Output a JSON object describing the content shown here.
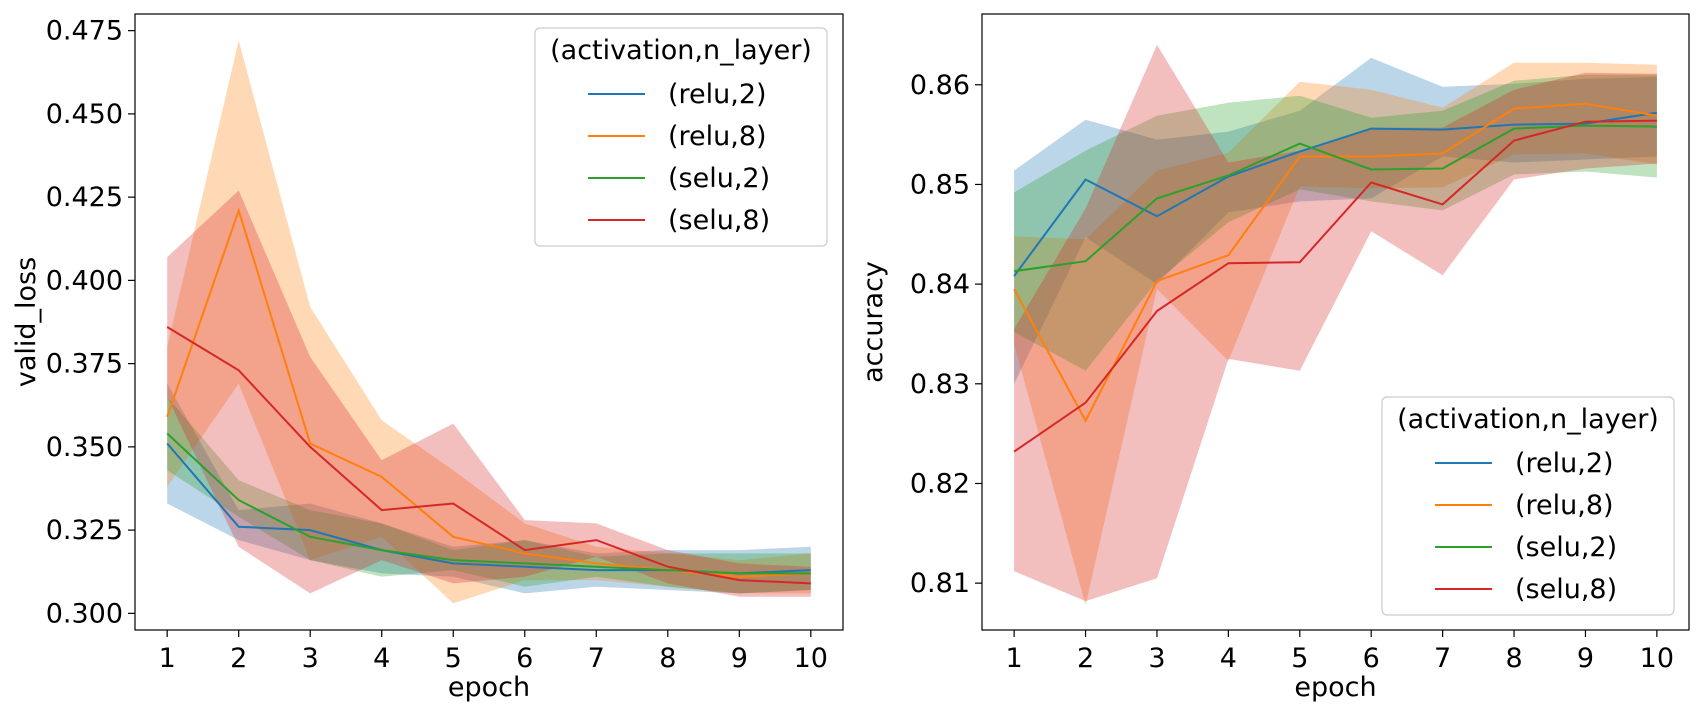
{
  "chart_data": [
    {
      "type": "line",
      "xlabel": "epoch",
      "ylabel": "valid_loss",
      "x": [
        1,
        2,
        3,
        4,
        5,
        6,
        7,
        8,
        9,
        10
      ],
      "xticks": [
        "1",
        "2",
        "3",
        "4",
        "5",
        "6",
        "7",
        "8",
        "9",
        "10"
      ],
      "yticks": [
        "0.300",
        "0.325",
        "0.350",
        "0.375",
        "0.400",
        "0.425",
        "0.450",
        "0.475"
      ],
      "ytick_values": [
        0.3,
        0.325,
        0.35,
        0.375,
        0.4,
        0.425,
        0.45,
        0.475
      ],
      "ylim": [
        0.295,
        0.48
      ],
      "xlim": [
        0.55,
        10.45
      ],
      "grid": false,
      "legend": {
        "title": "(activation,n_layer)",
        "placement": "top-right"
      },
      "series": [
        {
          "name": "(relu,2)",
          "color": "#1f77b4",
          "values": [
            0.351,
            0.326,
            0.325,
            0.319,
            0.315,
            0.314,
            0.313,
            0.313,
            0.312,
            0.313
          ],
          "lower": [
            0.333,
            0.322,
            0.316,
            0.312,
            0.311,
            0.306,
            0.308,
            0.307,
            0.306,
            0.307
          ],
          "upper": [
            0.369,
            0.331,
            0.333,
            0.327,
            0.32,
            0.322,
            0.318,
            0.319,
            0.319,
            0.32
          ]
        },
        {
          "name": "(relu,8)",
          "color": "#ff7f0e",
          "values": [
            0.359,
            0.421,
            0.351,
            0.341,
            0.323,
            0.318,
            0.315,
            0.313,
            0.311,
            0.312
          ],
          "lower": [
            0.338,
            0.369,
            0.316,
            0.323,
            0.303,
            0.31,
            0.31,
            0.308,
            0.306,
            0.306
          ],
          "upper": [
            0.38,
            0.472,
            0.392,
            0.358,
            0.343,
            0.327,
            0.32,
            0.318,
            0.316,
            0.318
          ]
        },
        {
          "name": "(selu,2)",
          "color": "#2ca02c",
          "values": [
            0.354,
            0.334,
            0.323,
            0.319,
            0.316,
            0.315,
            0.314,
            0.313,
            0.312,
            0.312
          ],
          "lower": [
            0.343,
            0.329,
            0.316,
            0.311,
            0.313,
            0.308,
            0.311,
            0.308,
            0.306,
            0.307
          ],
          "upper": [
            0.365,
            0.34,
            0.331,
            0.327,
            0.319,
            0.322,
            0.317,
            0.318,
            0.318,
            0.318
          ]
        },
        {
          "name": "(selu,8)",
          "color": "#d62728",
          "values": [
            0.386,
            0.373,
            0.35,
            0.331,
            0.333,
            0.319,
            0.322,
            0.314,
            0.31,
            0.309
          ],
          "lower": [
            0.365,
            0.32,
            0.306,
            0.316,
            0.309,
            0.311,
            0.317,
            0.309,
            0.305,
            0.305
          ],
          "upper": [
            0.407,
            0.427,
            0.377,
            0.346,
            0.357,
            0.328,
            0.327,
            0.319,
            0.315,
            0.314
          ]
        }
      ]
    },
    {
      "type": "line",
      "xlabel": "epoch",
      "ylabel": "accuracy",
      "x": [
        1,
        2,
        3,
        4,
        5,
        6,
        7,
        8,
        9,
        10
      ],
      "xticks": [
        "1",
        "2",
        "3",
        "4",
        "5",
        "6",
        "7",
        "8",
        "9",
        "10"
      ],
      "yticks": [
        "0.81",
        "0.82",
        "0.83",
        "0.84",
        "0.85",
        "0.86"
      ],
      "ytick_values": [
        0.81,
        0.82,
        0.83,
        0.84,
        0.85,
        0.86
      ],
      "ylim": [
        0.8053,
        0.8671
      ],
      "xlim": [
        0.55,
        10.45
      ],
      "grid": false,
      "legend": {
        "title": "(activation,n_layer)",
        "placement": "bottom-right"
      },
      "series": [
        {
          "name": "(relu,2)",
          "color": "#1f77b4",
          "values": [
            0.8408,
            0.8505,
            0.8468,
            0.8508,
            0.8533,
            0.8556,
            0.8555,
            0.856,
            0.8561,
            0.8572
          ],
          "lower": [
            0.83,
            0.8447,
            0.84,
            0.8472,
            0.8483,
            0.8486,
            0.8528,
            0.8522,
            0.8525,
            0.8528
          ],
          "upper": [
            0.8514,
            0.8565,
            0.8545,
            0.8553,
            0.8574,
            0.8627,
            0.8598,
            0.8601,
            0.8606,
            0.8608
          ]
        },
        {
          "name": "(relu,8)",
          "color": "#ff7f0e",
          "values": [
            0.8395,
            0.8263,
            0.8403,
            0.8429,
            0.8528,
            0.8528,
            0.8531,
            0.8576,
            0.8581,
            0.8569
          ],
          "lower": [
            0.834,
            0.8078,
            0.8395,
            0.8323,
            0.8498,
            0.8496,
            0.8497,
            0.853,
            0.8531,
            0.852
          ],
          "upper": [
            0.8448,
            0.8445,
            0.8514,
            0.8532,
            0.8603,
            0.8595,
            0.8577,
            0.8622,
            0.8622,
            0.862
          ]
        },
        {
          "name": "(selu,2)",
          "color": "#2ca02c",
          "values": [
            0.8413,
            0.8423,
            0.8486,
            0.8509,
            0.8541,
            0.8515,
            0.8516,
            0.8556,
            0.8559,
            0.8558
          ],
          "lower": [
            0.8352,
            0.8313,
            0.8403,
            0.8462,
            0.8495,
            0.8483,
            0.8474,
            0.851,
            0.8513,
            0.8507
          ],
          "upper": [
            0.8492,
            0.8534,
            0.8569,
            0.8582,
            0.8589,
            0.8567,
            0.8574,
            0.8604,
            0.861,
            0.861
          ]
        },
        {
          "name": "(selu,8)",
          "color": "#d62728",
          "values": [
            0.8232,
            0.8281,
            0.8373,
            0.8421,
            0.8422,
            0.8502,
            0.848,
            0.8544,
            0.8563,
            0.8564
          ],
          "lower": [
            0.8112,
            0.8082,
            0.8105,
            0.8325,
            0.8313,
            0.8453,
            0.8409,
            0.8505,
            0.8516,
            0.8521
          ],
          "upper": [
            0.8355,
            0.8476,
            0.864,
            0.8522,
            0.8534,
            0.8557,
            0.8557,
            0.8595,
            0.8612,
            0.8611
          ]
        }
      ]
    }
  ]
}
